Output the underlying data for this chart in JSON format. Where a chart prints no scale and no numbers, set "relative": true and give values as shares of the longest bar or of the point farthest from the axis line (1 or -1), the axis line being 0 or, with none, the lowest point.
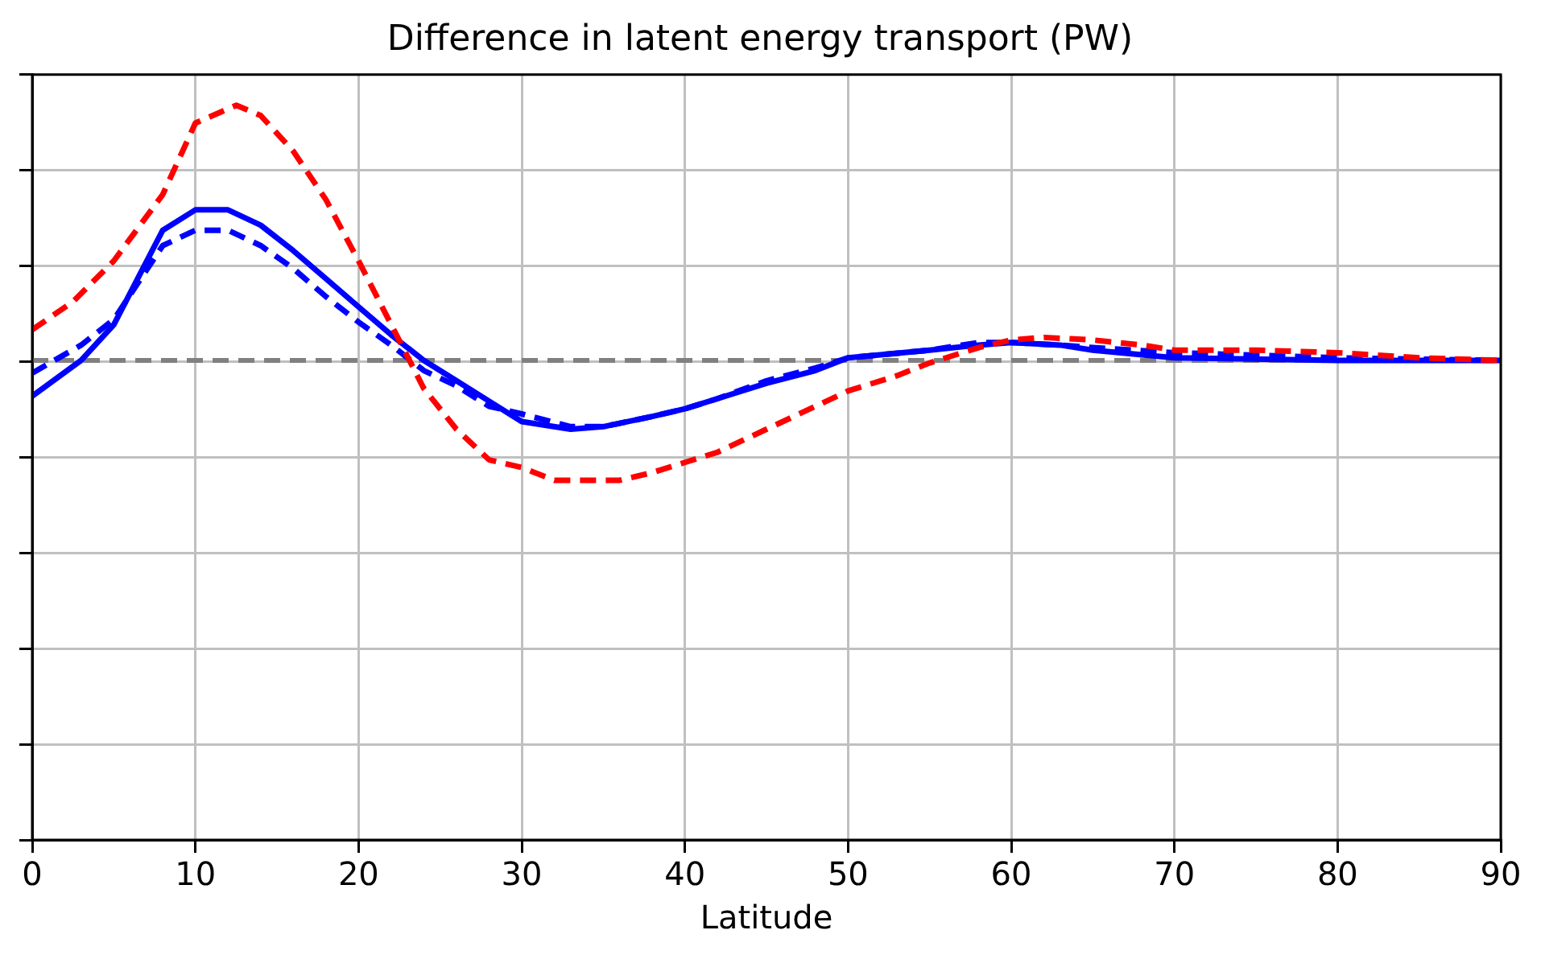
{
  "chart_data": {
    "type": "line",
    "title": "Difference in latent energy transport (PW)",
    "xlabel": "Latitude",
    "relative": true,
    "xlim": [
      0,
      90
    ],
    "xticks": [
      0,
      10,
      20,
      30,
      40,
      50,
      60,
      70,
      80,
      90
    ],
    "grid": true,
    "legend": false,
    "tick_labels": "x",
    "marker": "none",
    "series": [
      {
        "color": "#ff0000",
        "line_style": "dashed",
        "x": [
          0,
          2.5,
          5,
          8,
          10,
          12.5,
          14,
          16,
          18,
          20,
          22,
          24,
          26,
          28,
          30,
          32,
          34,
          36,
          38,
          40,
          42,
          45,
          48,
          50,
          53,
          55,
          58,
          60,
          62,
          65,
          68,
          70,
          75,
          80,
          85,
          90
        ],
        "values": [
          0.12,
          0.23,
          0.39,
          0.65,
          0.93,
          1,
          0.96,
          0.82,
          0.63,
          0.39,
          0.14,
          -0.11,
          -0.27,
          -0.39,
          -0.42,
          -0.47,
          -0.47,
          -0.47,
          -0.44,
          -0.4,
          -0.36,
          -0.27,
          -0.18,
          -0.12,
          -0.06,
          -0.01,
          0.05,
          0.08,
          0.09,
          0.08,
          0.06,
          0.04,
          0.04,
          0.03,
          0.01,
          0
        ]
      },
      {
        "color": "#0000ff",
        "line_style": "solid",
        "x": [
          0,
          3,
          5,
          8,
          10,
          12,
          14,
          16,
          18,
          20,
          22,
          24,
          26,
          28,
          30,
          33,
          35,
          38,
          40,
          42,
          45,
          48,
          50,
          55,
          58,
          60,
          63,
          65,
          70,
          80,
          90
        ],
        "values": [
          -0.14,
          0,
          0.14,
          0.51,
          0.59,
          0.59,
          0.53,
          0.43,
          0.32,
          0.21,
          0.1,
          0,
          -0.08,
          -0.16,
          -0.24,
          -0.27,
          -0.26,
          -0.22,
          -0.19,
          -0.15,
          -0.09,
          -0.04,
          0.01,
          0.04,
          0.06,
          0.07,
          0.06,
          0.04,
          0.01,
          0,
          0
        ]
      },
      {
        "color": "#0000ff",
        "line_style": "dashed",
        "x": [
          0,
          3,
          5,
          8,
          10,
          12,
          14,
          16,
          18,
          20,
          22,
          24,
          26,
          28,
          30,
          33,
          35,
          38,
          40,
          42,
          45,
          48,
          50,
          55,
          58,
          60,
          63,
          65,
          70,
          80,
          90
        ],
        "values": [
          -0.05,
          0.06,
          0.16,
          0.45,
          0.51,
          0.51,
          0.45,
          0.36,
          0.25,
          0.15,
          0.06,
          -0.04,
          -0.1,
          -0.18,
          -0.21,
          -0.26,
          -0.26,
          -0.22,
          -0.19,
          -0.15,
          -0.08,
          -0.03,
          0.01,
          0.04,
          0.07,
          0.07,
          0.06,
          0.05,
          0.03,
          0.01,
          0
        ]
      }
    ],
    "ref_lines": [
      {
        "axis": "y",
        "value": 0,
        "color": "#808080",
        "line_style": "dashed"
      }
    ]
  }
}
